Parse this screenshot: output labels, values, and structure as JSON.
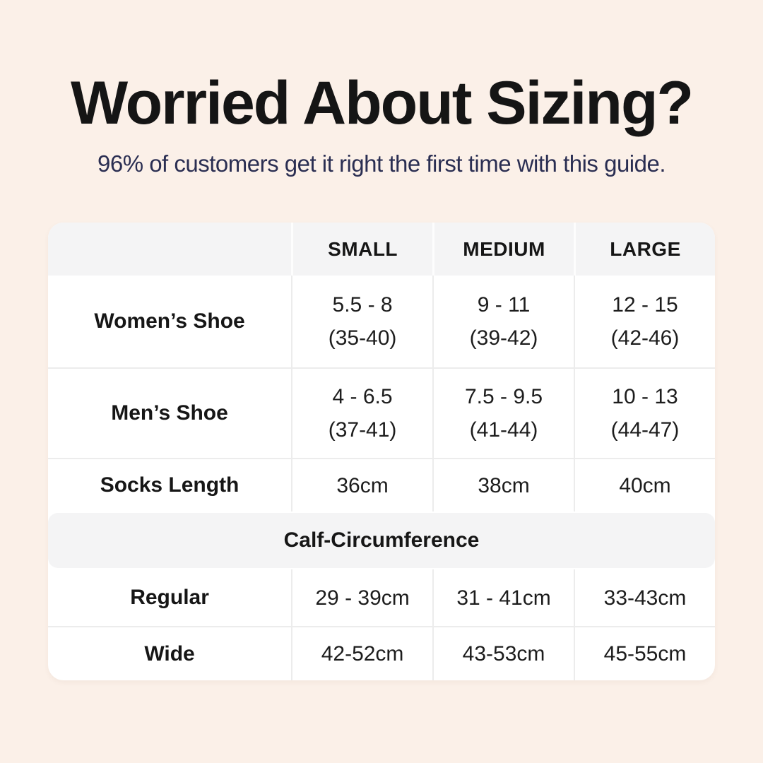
{
  "page": {
    "title": "Worried About Sizing?",
    "subtitle": "96% of customers get it right the first time with this guide."
  },
  "table": {
    "header": {
      "small": "SMALL",
      "medium": "MEDIUM",
      "large": "LARGE"
    },
    "rows": [
      {
        "label": "Women’s Shoe",
        "small": {
          "line1": "5.5 - 8",
          "line2": "(35-40)"
        },
        "medium": {
          "line1": "9 - 11",
          "line2": "(39-42)"
        },
        "large": {
          "line1": "12 - 15",
          "line2": "(42-46)"
        }
      },
      {
        "label": "Men’s Shoe",
        "small": {
          "line1": "4 - 6.5",
          "line2": "(37-41)"
        },
        "medium": {
          "line1": "7.5 - 9.5",
          "line2": "(41-44)"
        },
        "large": {
          "line1": "10 - 13",
          "line2": "(44-47)"
        }
      },
      {
        "label": "Socks Length",
        "small": {
          "line1": "36cm"
        },
        "medium": {
          "line1": "38cm"
        },
        "large": {
          "line1": "40cm"
        }
      }
    ],
    "section_title": "Calf-Circumference",
    "calf_rows": [
      {
        "label": "Regular",
        "small": "29 - 39cm",
        "medium": "31 - 41cm",
        "large": "33-43cm"
      },
      {
        "label": "Wide",
        "small": "42-52cm",
        "medium": "43-53cm",
        "large": "45-55cm"
      }
    ]
  },
  "colors": {
    "page_bg": "#FBF0E8",
    "table_bg": "#FFFFFF",
    "band_bg": "#F4F4F5",
    "divider": "#ECECEC",
    "title_color": "#151515",
    "subtitle_color": "#2A2E52",
    "text_color": "#1D1D1D",
    "label_color": "#161616"
  }
}
